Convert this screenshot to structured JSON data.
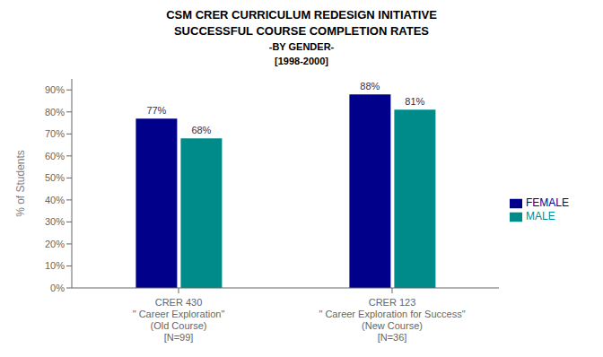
{
  "chart_data": {
    "type": "bar",
    "title": "CSM CRER CURRICULUM REDESIGN INITIATIVE\nSUCCESSFUL COURSE COMPLETION RATES",
    "subtitle": "-BY GENDER-\n[1998-2000]",
    "categories": [
      "CRER 430\n\" Career Exploration\"\n(Old Course)\n[N=99]",
      "CRER 123\n\" Career Exploration for Success\"\n(New Course)\n[N=36]"
    ],
    "series": [
      {
        "name": "FEMALE",
        "color": "#00008B",
        "values": [
          77,
          88
        ],
        "value_labels": [
          "77%",
          "88%"
        ]
      },
      {
        "name": "MALE",
        "color": "#008B8B",
        "values": [
          68,
          81
        ],
        "value_labels": [
          "68%",
          "81%"
        ]
      }
    ],
    "ylabel": "% of Students",
    "ylim": [
      0,
      95
    ],
    "yticks": [
      {
        "value": 0,
        "label": "0%"
      },
      {
        "value": 10,
        "label": "10%"
      },
      {
        "value": 20,
        "label": "20%"
      },
      {
        "value": 30,
        "label": "30%"
      },
      {
        "value": 40,
        "label": "40%"
      },
      {
        "value": 50,
        "label": "50%"
      },
      {
        "value": 60,
        "label": "60%"
      },
      {
        "value": 70,
        "label": "70%"
      },
      {
        "value": 80,
        "label": "80%"
      },
      {
        "value": 90,
        "label": "90%"
      }
    ],
    "grid": false,
    "legend": "right",
    "data_labels": true
  }
}
